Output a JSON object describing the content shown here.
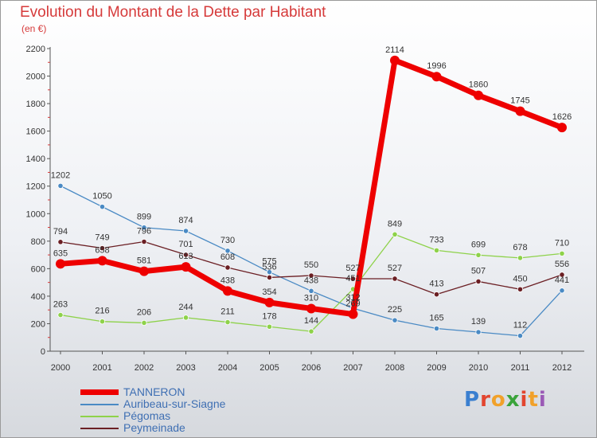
{
  "title": "Evolution du Montant de la Dette par Habitant",
  "subtitle": "(en €)",
  "brand": {
    "text": "Proxiti",
    "colors": [
      "#3a7fd0",
      "#e2452f",
      "#f1a12a",
      "#3aa33a",
      "#e2452f",
      "#f1a12a",
      "#9b59b6"
    ]
  },
  "chart_data": {
    "type": "line",
    "x": [
      "2000",
      "2001",
      "2002",
      "2003",
      "2004",
      "2005",
      "2006",
      "2007",
      "2008",
      "2009",
      "2010",
      "2011",
      "2012"
    ],
    "y_ticks": [
      "0",
      "200",
      "400",
      "600",
      "800",
      "1000",
      "1200",
      "1400",
      "1600",
      "1800",
      "2000",
      "2200"
    ],
    "ylim": [
      0,
      2200
    ],
    "grid": false,
    "legend_position": "bottom-left",
    "series": [
      {
        "name": "TANNERON",
        "color": "#ee0000",
        "values": [
          635,
          658,
          581,
          613,
          438,
          354,
          310,
          269,
          2114,
          1996,
          1860,
          1745,
          1626
        ]
      },
      {
        "name": "Auribeau-sur-Siagne",
        "color": "#4a8ac4",
        "values": [
          1202,
          1050,
          899,
          874,
          730,
          575,
          438,
          312,
          225,
          165,
          139,
          112,
          441
        ]
      },
      {
        "name": "Pégomas",
        "color": "#8ed24a",
        "values": [
          263,
          216,
          206,
          244,
          211,
          178,
          144,
          451,
          849,
          733,
          699,
          678,
          710
        ]
      },
      {
        "name": "Peymeinade",
        "color": "#6b1f24",
        "values": [
          794,
          749,
          796,
          701,
          608,
          536,
          550,
          527,
          527,
          413,
          507,
          450,
          556
        ]
      }
    ]
  },
  "legend": [
    {
      "label": "TANNERON",
      "color": "#ee0000"
    },
    {
      "label": "Auribeau-sur-Siagne",
      "color": "#4a8ac4"
    },
    {
      "label": "Pégomas",
      "color": "#8ed24a"
    },
    {
      "label": "Peymeinade",
      "color": "#6b1f24"
    }
  ]
}
